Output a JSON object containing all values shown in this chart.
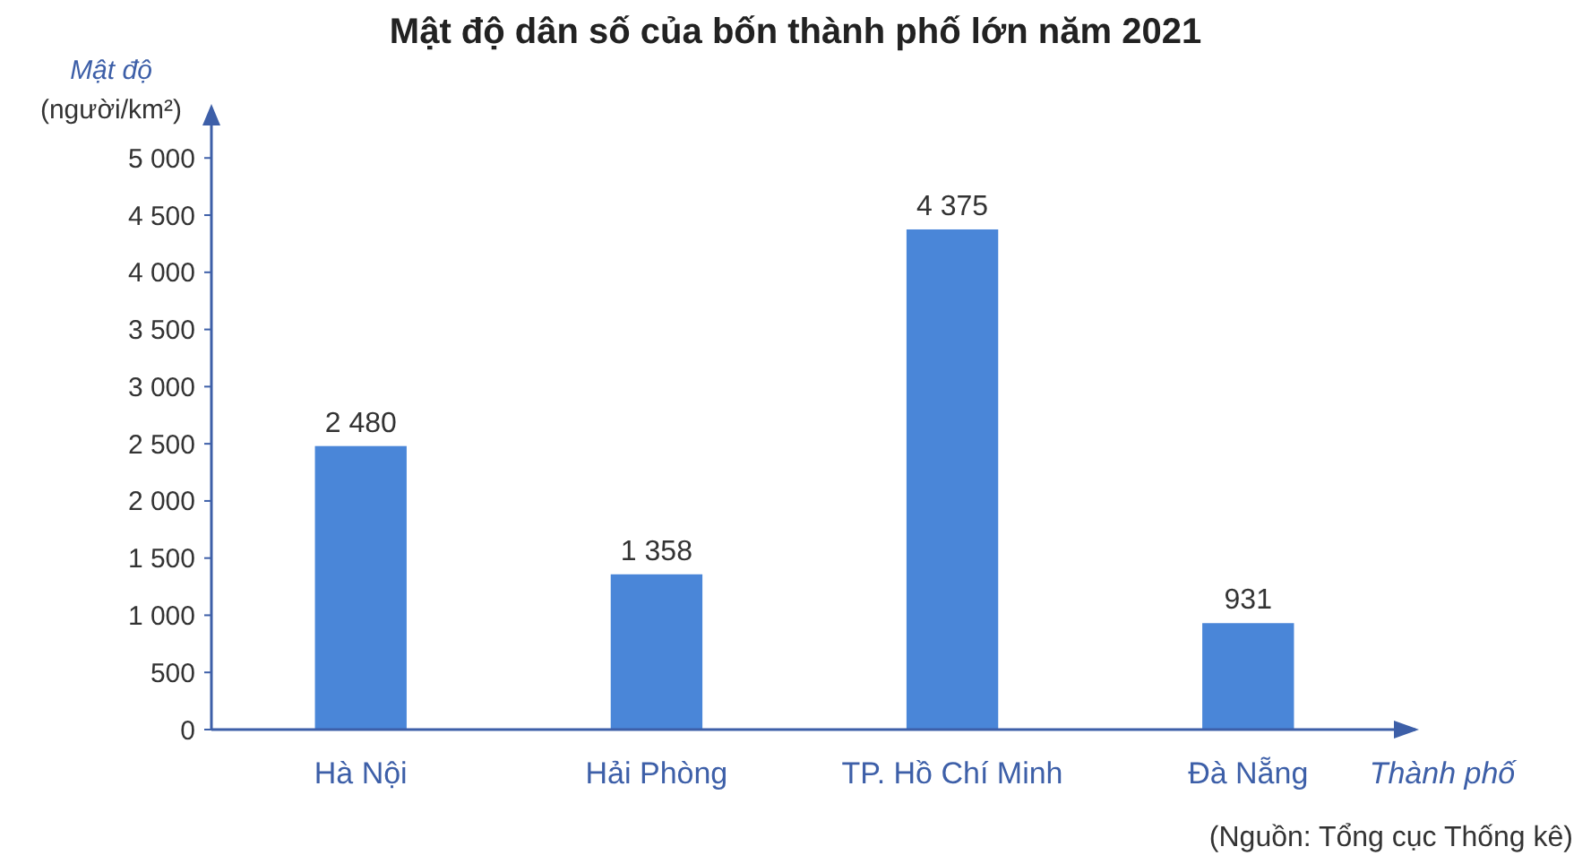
{
  "chart_data": {
    "type": "bar",
    "title": "Mật độ dân số của bốn thành phố lớn năm 2021",
    "ylabel": "Mật độ\n(người/km²)",
    "xlabel": "Thành phố",
    "categories": [
      "Hà Nội",
      "Hải Phòng",
      "TP. Hồ Chí Minh",
      "Đà Nẵng"
    ],
    "values": [
      2480,
      1358,
      4375,
      931
    ],
    "color": "#4a86d8",
    "value_labels": [
      "2 480",
      "1 358",
      "4 375",
      "931"
    ],
    "ylim": [
      0,
      5300
    ],
    "yticks": [
      0,
      500,
      {
        "value": 1000,
        "label": "1 000"
      },
      {
        "value": 1500,
        "label": "1 500"
      },
      {
        "value": 2000,
        "label": "2 000"
      },
      {
        "value": 2500,
        "label": "2 500"
      },
      {
        "value": 3000,
        "label": "3 000"
      },
      {
        "value": 3500,
        "label": "3 500"
      },
      {
        "value": 4000,
        "label": "4 000"
      },
      {
        "value": 4500,
        "label": "4 500"
      },
      {
        "value": 5000,
        "label": "5 000"
      }
    ],
    "grid": false,
    "annotations": [
      "(Nguồn: Tổng cục Thống kê)"
    ]
  }
}
